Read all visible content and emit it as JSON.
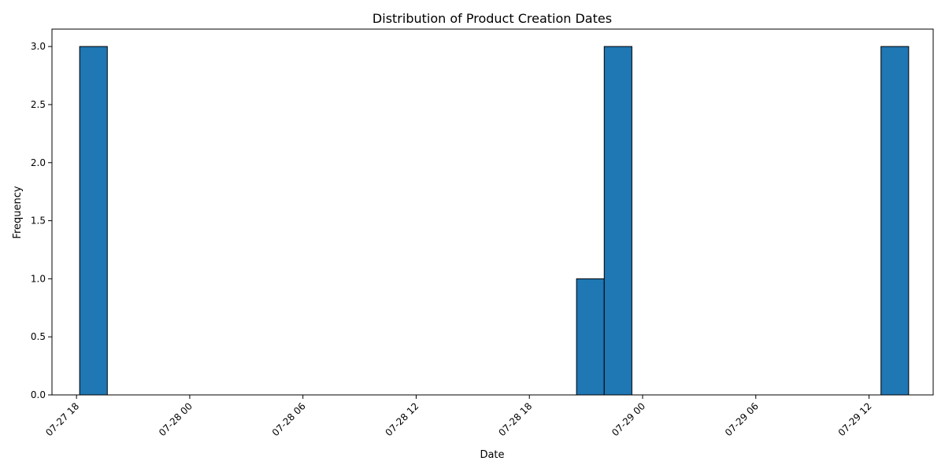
{
  "chart_data": {
    "type": "bar",
    "title": "Distribution of Product Creation Dates",
    "xlabel": "Date",
    "ylabel": "Frequency",
    "x_axis": {
      "kind": "datetime",
      "range": [
        "2024-07-27T16:42",
        "2024-07-29T15:24"
      ],
      "ticks": [
        {
          "value": "2024-07-27T18:00",
          "label": "07-27 18"
        },
        {
          "value": "2024-07-28T00:00",
          "label": "07-28 00"
        },
        {
          "value": "2024-07-28T06:00",
          "label": "07-28 06"
        },
        {
          "value": "2024-07-28T12:00",
          "label": "07-28 12"
        },
        {
          "value": "2024-07-28T18:00",
          "label": "07-28 18"
        },
        {
          "value": "2024-07-29T00:00",
          "label": "07-29 00"
        },
        {
          "value": "2024-07-29T06:00",
          "label": "07-29 06"
        },
        {
          "value": "2024-07-29T12:00",
          "label": "07-29 12"
        }
      ]
    },
    "ylim": [
      0,
      3.15
    ],
    "y_ticks": [
      "0.0",
      "0.5",
      "1.0",
      "1.5",
      "2.0",
      "2.5",
      "3.0"
    ],
    "bars": [
      {
        "start": "2024-07-27T18:10",
        "end": "2024-07-27T19:38",
        "value": 3
      },
      {
        "start": "2024-07-28T20:30",
        "end": "2024-07-28T21:58",
        "value": 1
      },
      {
        "start": "2024-07-28T21:58",
        "end": "2024-07-28T23:26",
        "value": 3
      },
      {
        "start": "2024-07-29T12:38",
        "end": "2024-07-29T14:06",
        "value": 3
      }
    ],
    "bar_color": "#1f77b4",
    "edge_color": "#000000",
    "grid": false,
    "legend": "none"
  }
}
